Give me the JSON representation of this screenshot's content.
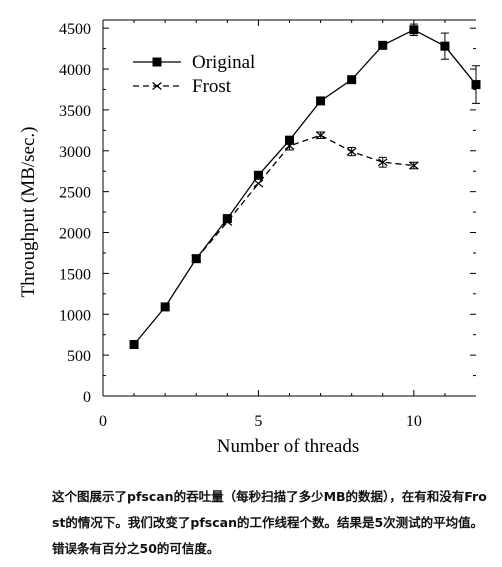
{
  "chart_data": {
    "type": "line",
    "xlabel": "Number of threads",
    "ylabel": "Throughput (MB/sec.)",
    "xlim": [
      0,
      12
    ],
    "ylim": [
      0,
      4600
    ],
    "xticks": [
      0,
      5,
      10
    ],
    "yticks": [
      0,
      500,
      1000,
      1500,
      2000,
      2500,
      3000,
      3500,
      4000,
      4500
    ],
    "legend_position": "top-left",
    "grid": false,
    "series": [
      {
        "name": "Original",
        "marker": "square",
        "line_style": "solid",
        "color": "#000000",
        "points": [
          {
            "x": 1,
            "y": 630,
            "err": 0
          },
          {
            "x": 2,
            "y": 1090,
            "err": 0
          },
          {
            "x": 3,
            "y": 1680,
            "err": 0
          },
          {
            "x": 4,
            "y": 2170,
            "err": 0
          },
          {
            "x": 5,
            "y": 2700,
            "err": 0
          },
          {
            "x": 6,
            "y": 3130,
            "err": 0
          },
          {
            "x": 7,
            "y": 3610,
            "err": 0
          },
          {
            "x": 8,
            "y": 3870,
            "err": 0
          },
          {
            "x": 9,
            "y": 4290,
            "err": 0
          },
          {
            "x": 10,
            "y": 4480,
            "err": 70
          },
          {
            "x": 11,
            "y": 4280,
            "err": 160
          },
          {
            "x": 12,
            "y": 3810,
            "err": 230
          }
        ]
      },
      {
        "name": "Frost",
        "marker": "x",
        "line_style": "dashed",
        "color": "#000000",
        "points": [
          {
            "x": 3,
            "y": 1680,
            "err": 0
          },
          {
            "x": 4,
            "y": 2130,
            "err": 0
          },
          {
            "x": 5,
            "y": 2600,
            "err": 0
          },
          {
            "x": 6,
            "y": 3060,
            "err": 50
          },
          {
            "x": 7,
            "y": 3190,
            "err": 40
          },
          {
            "x": 8,
            "y": 2990,
            "err": 50
          },
          {
            "x": 9,
            "y": 2860,
            "err": 60
          },
          {
            "x": 10,
            "y": 2820,
            "err": 40
          }
        ]
      }
    ]
  },
  "caption": "这个图展示了pfscan的吞吐量（每秒扫描了多少MB的数据），在有和没有Frost的情况下。我们改变了pfscan的工作线程个数。结果是5次测试的平均值。错误条有百分之50的可信度。"
}
